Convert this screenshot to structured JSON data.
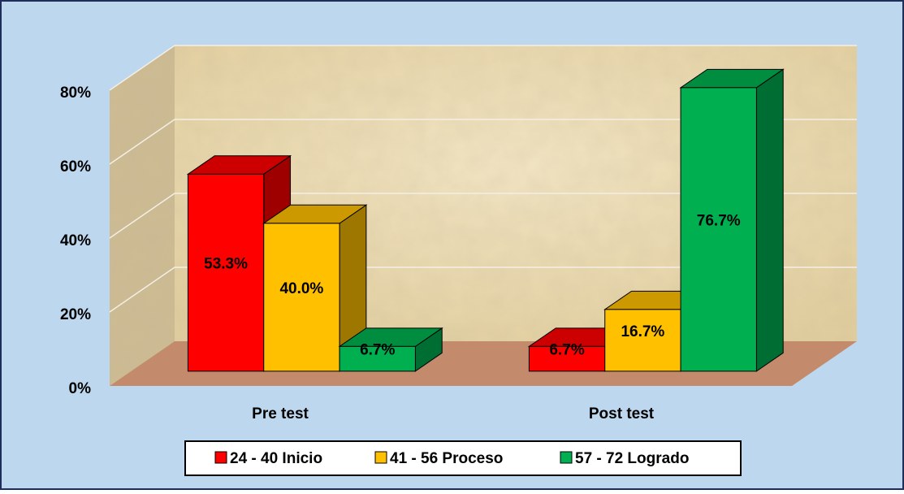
{
  "chart_data": {
    "type": "bar",
    "categories": [
      "Pre test",
      "Post test"
    ],
    "series": [
      {
        "name": "24 - 40 Inicio",
        "color": "#ff0000",
        "values": [
          53.3,
          6.7
        ],
        "value_labels": [
          "53.3%",
          "6.7%"
        ]
      },
      {
        "name": "41 - 56 Proceso",
        "color": "#ffc000",
        "values": [
          40.0,
          16.7
        ],
        "value_labels": [
          "40.0%",
          "16.7%"
        ]
      },
      {
        "name": "57 - 72 Logrado",
        "color": "#00b050",
        "values": [
          6.7,
          76.7
        ],
        "value_labels": [
          "6.7%",
          "76.7%"
        ]
      }
    ],
    "ylim": [
      0,
      80
    ],
    "yticks": [
      {
        "value": 0,
        "label": "0%"
      },
      {
        "value": 20,
        "label": "20%"
      },
      {
        "value": 40,
        "label": "40%"
      },
      {
        "value": 60,
        "label": "60%"
      },
      {
        "value": 80,
        "label": "80%"
      }
    ],
    "grid": true,
    "legend": "bottom"
  }
}
